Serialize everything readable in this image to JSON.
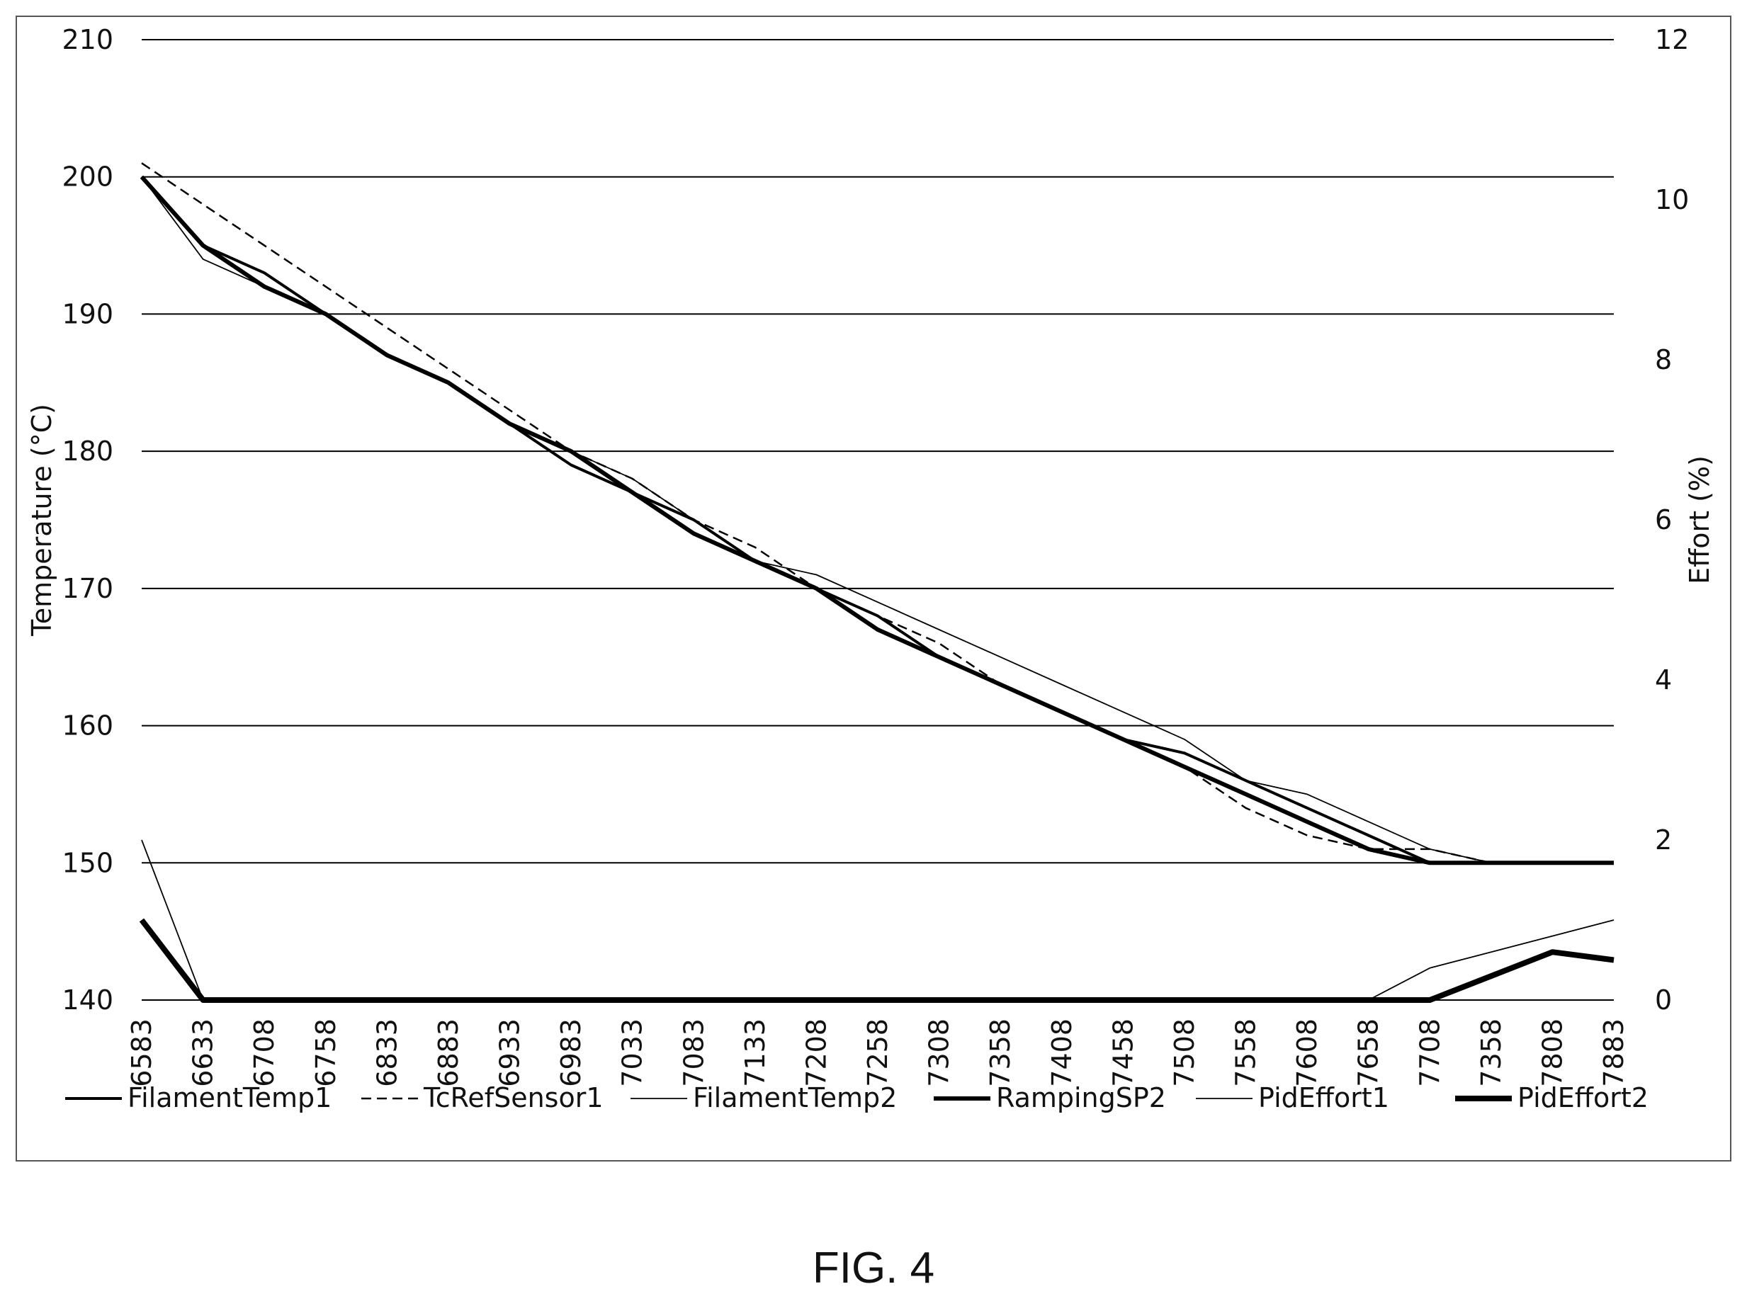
{
  "figure": {
    "caption": "FIG. 4"
  },
  "chart_data": {
    "type": "line",
    "xlabel": "",
    "ylabel": "Temperature (°C)",
    "y2label": "Effort (%)",
    "ylim": [
      140,
      210
    ],
    "y2lim": [
      0,
      12
    ],
    "yticks": [
      "210",
      "200",
      "190",
      "180",
      "170",
      "160",
      "150",
      "140"
    ],
    "y2ticks": [
      "12",
      "10",
      "8",
      "6",
      "4",
      "2",
      "0"
    ],
    "categories": [
      "6583",
      "6633",
      "6708",
      "6758",
      "6833",
      "6883",
      "6933",
      "6983",
      "7033",
      "7083",
      "7133",
      "7208",
      "7258",
      "7308",
      "7358",
      "7408",
      "7458",
      "7508",
      "7558",
      "7608",
      "7658",
      "7708",
      "7358",
      "7808",
      "7883"
    ],
    "grid": true,
    "legend_position": "bottom",
    "series": [
      {
        "name": "FilamentTemp1",
        "axis": "left",
        "style": "solid-medium",
        "values": [
          200,
          195,
          193,
          190,
          187,
          185,
          182,
          179,
          177,
          175,
          172,
          170,
          168,
          165,
          163,
          161,
          159,
          158,
          156,
          154,
          152,
          150,
          150,
          150,
          150
        ]
      },
      {
        "name": "TcRefSensor1",
        "axis": "left",
        "style": "dashed",
        "values": [
          201,
          198,
          195,
          192,
          189,
          186,
          183,
          180,
          178,
          175,
          173,
          170,
          168,
          166,
          163,
          161,
          159,
          157,
          154,
          152,
          151,
          151,
          150,
          150,
          150
        ]
      },
      {
        "name": "FilamentTemp2",
        "axis": "left",
        "style": "solid-thin",
        "values": [
          200,
          194,
          192,
          190,
          187,
          185,
          182,
          180,
          178,
          175,
          172,
          171,
          169,
          167,
          165,
          163,
          161,
          159,
          156,
          155,
          153,
          151,
          150,
          150,
          150
        ]
      },
      {
        "name": "RampingSP2",
        "axis": "left",
        "style": "solid-thick",
        "values": [
          200,
          195,
          192,
          190,
          187,
          185,
          182,
          180,
          177,
          174,
          172,
          170,
          167,
          165,
          163,
          161,
          159,
          157,
          155,
          153,
          151,
          150,
          150,
          150,
          150
        ]
      },
      {
        "name": "PidEffort1",
        "axis": "right",
        "style": "solid-thin",
        "values": [
          2.0,
          0,
          0,
          0,
          0,
          0,
          0,
          0,
          0,
          0,
          0,
          0,
          0,
          0,
          0,
          0,
          0,
          0,
          0,
          0,
          0,
          0.4,
          0.6,
          0.8,
          1.0
        ]
      },
      {
        "name": "PidEffort2",
        "axis": "right",
        "style": "solid-extra-thick",
        "values": [
          1.0,
          0,
          0,
          0,
          0,
          0,
          0,
          0,
          0,
          0,
          0,
          0,
          0,
          0,
          0,
          0,
          0,
          0,
          0,
          0,
          0,
          0,
          0.3,
          0.6,
          0.5
        ]
      }
    ]
  }
}
